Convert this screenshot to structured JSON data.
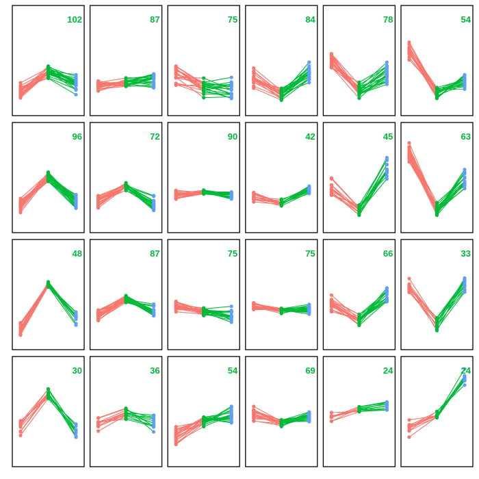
{
  "chart_data": {
    "type": "line",
    "layout": {
      "rows": 4,
      "cols": 6
    },
    "x_points": 3,
    "ylim": [
      0,
      1
    ],
    "segment_colors": {
      "first_point": "#F8766D",
      "rise_or_fall_segment_1": "#F8766D",
      "segment_2": "#00BA38",
      "last_point": "#619CFF"
    },
    "count_color": "#00BA38",
    "panels": [
      {
        "count": "102",
        "centroid": [
          0.18,
          0.4,
          0.27
        ],
        "spread": 0.05,
        "lines": 24
      },
      {
        "count": "87",
        "centroid": [
          0.25,
          0.28,
          0.31
        ],
        "spread": 0.04,
        "lines": 22
      },
      {
        "count": "75",
        "centroid": [
          0.35,
          0.24,
          0.22
        ],
        "spread": 0.08,
        "lines": 20
      },
      {
        "count": "84",
        "centroid": [
          0.32,
          0.16,
          0.4
        ],
        "spread": 0.06,
        "lines": 20
      },
      {
        "count": "78",
        "centroid": [
          0.52,
          0.21,
          0.38
        ],
        "spread": 0.06,
        "lines": 20
      },
      {
        "count": "54",
        "centroid": [
          0.62,
          0.18,
          0.29
        ],
        "spread": 0.05,
        "lines": 18
      },
      {
        "count": "96",
        "centroid": [
          0.22,
          0.52,
          0.26
        ],
        "spread": 0.05,
        "lines": 24
      },
      {
        "count": "72",
        "centroid": [
          0.28,
          0.42,
          0.24
        ],
        "spread": 0.04,
        "lines": 20
      },
      {
        "count": "90",
        "centroid": [
          0.32,
          0.36,
          0.33
        ],
        "spread": 0.03,
        "lines": 22
      },
      {
        "count": "42",
        "centroid": [
          0.31,
          0.25,
          0.38
        ],
        "spread": 0.03,
        "lines": 16
      },
      {
        "count": "45",
        "centroid": [
          0.4,
          0.16,
          0.62
        ],
        "spread": 0.07,
        "lines": 14
      },
      {
        "count": "63",
        "centroid": [
          0.78,
          0.19,
          0.48
        ],
        "spread": 0.06,
        "lines": 18
      },
      {
        "count": "48",
        "centroid": [
          0.18,
          0.62,
          0.28
        ],
        "spread": 0.05,
        "lines": 16
      },
      {
        "count": "87",
        "centroid": [
          0.3,
          0.46,
          0.33
        ],
        "spread": 0.04,
        "lines": 22
      },
      {
        "count": "75",
        "centroid": [
          0.41,
          0.33,
          0.3
        ],
        "spread": 0.04,
        "lines": 20
      },
      {
        "count": "75",
        "centroid": [
          0.4,
          0.35,
          0.37
        ],
        "spread": 0.03,
        "lines": 20
      },
      {
        "count": "66",
        "centroid": [
          0.42,
          0.26,
          0.5
        ],
        "spread": 0.05,
        "lines": 18
      },
      {
        "count": "33",
        "centroid": [
          0.58,
          0.22,
          0.65
        ],
        "spread": 0.07,
        "lines": 12
      },
      {
        "count": "30",
        "centroid": [
          0.36,
          0.7,
          0.32
        ],
        "spread": 0.06,
        "lines": 10
      },
      {
        "count": "36",
        "centroid": [
          0.38,
          0.5,
          0.4
        ],
        "spread": 0.05,
        "lines": 12
      },
      {
        "count": "54",
        "centroid": [
          0.26,
          0.42,
          0.46
        ],
        "spread": 0.05,
        "lines": 18
      },
      {
        "count": "69",
        "centroid": [
          0.48,
          0.4,
          0.46
        ],
        "spread": 0.04,
        "lines": 20
      },
      {
        "count": "24",
        "centroid": [
          0.46,
          0.54,
          0.58
        ],
        "spread": 0.04,
        "lines": 10
      },
      {
        "count": "24",
        "centroid": [
          0.33,
          0.48,
          0.86
        ],
        "spread": 0.06,
        "lines": 10
      }
    ]
  }
}
